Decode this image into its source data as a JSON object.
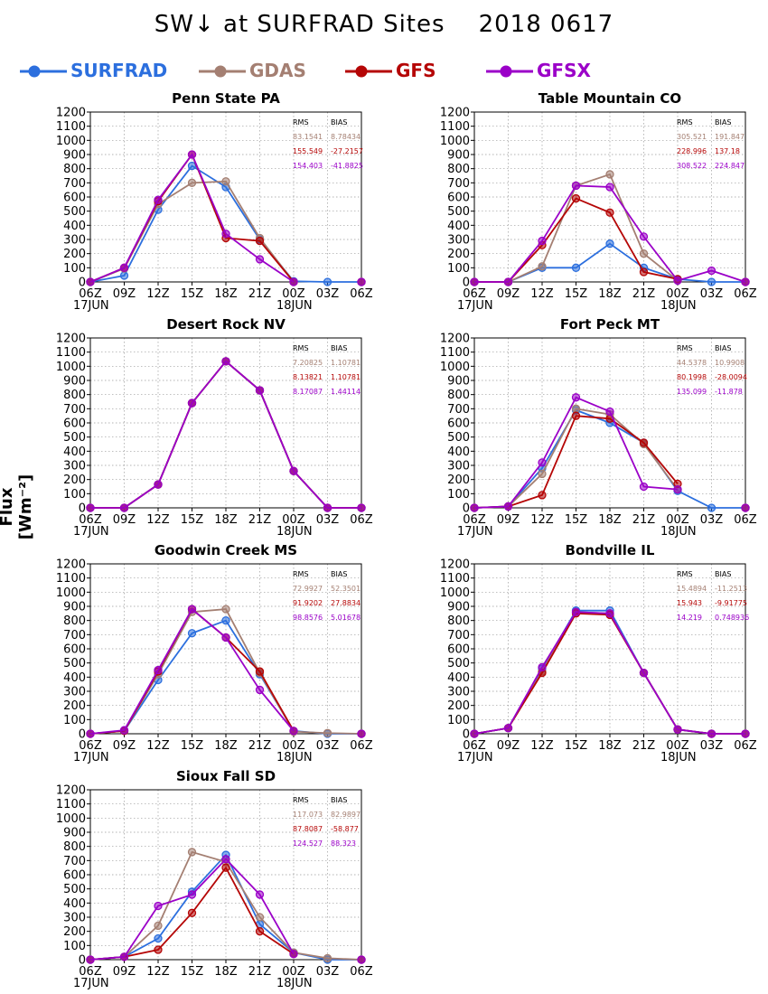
{
  "title": "SW↓ at SURFRAD Sites    2018 0617",
  "ylabel": "Flux [Wm⁻²]",
  "colors": {
    "SURFRAD": "#2c6fde",
    "GDAS": "#a47f72",
    "GFS": "#b50606",
    "GFSX": "#9b00c8"
  },
  "legend": [
    {
      "name": "SURFRAD",
      "color": "#2c6fde"
    },
    {
      "name": "GDAS",
      "color": "#a47f72"
    },
    {
      "name": "GFS",
      "color": "#b50606"
    },
    {
      "name": "GFSX",
      "color": "#9b00c8"
    }
  ],
  "stat_headers": {
    "rms": "RMS",
    "bias": "BIAS"
  },
  "chart_data": [
    {
      "type": "line",
      "title": "Penn State PA",
      "x": [
        "06Z",
        "09Z",
        "12Z",
        "15Z",
        "18Z",
        "21Z",
        "00Z",
        "03Z",
        "06Z"
      ],
      "date_labels": [
        "17JUN",
        "18JUN"
      ],
      "ylim": [
        0,
        1200
      ],
      "yticks": [
        0,
        100,
        200,
        300,
        400,
        500,
        600,
        700,
        800,
        900,
        1000,
        1100,
        1200
      ],
      "grid": true,
      "series": [
        {
          "name": "SURFRAD",
          "values": [
            0,
            45,
            510,
            820,
            670,
            300,
            5,
            0,
            0
          ]
        },
        {
          "name": "GDAS",
          "values": [
            0,
            95,
            550,
            700,
            710,
            310,
            0,
            null,
            0
          ]
        },
        {
          "name": "GFS",
          "values": [
            0,
            100,
            570,
            900,
            310,
            290,
            0,
            null,
            0
          ]
        },
        {
          "name": "GFSX",
          "values": [
            0,
            100,
            580,
            900,
            340,
            160,
            0,
            null,
            0
          ]
        }
      ],
      "stats": [
        {
          "model": "GDAS",
          "rms": "83.1541",
          "bias": "8.78434"
        },
        {
          "model": "GFS",
          "rms": "155.549",
          "bias": "-27.2157"
        },
        {
          "model": "GFSX",
          "rms": "154.403",
          "bias": "-41.8825"
        }
      ]
    },
    {
      "type": "line",
      "title": "Table Mountain CO",
      "x": [
        "06Z",
        "09Z",
        "12Z",
        "15Z",
        "18Z",
        "21Z",
        "00Z",
        "03Z",
        "06Z"
      ],
      "date_labels": [
        "17JUN",
        "18JUN"
      ],
      "ylim": [
        0,
        1200
      ],
      "yticks": [
        0,
        100,
        200,
        300,
        400,
        500,
        600,
        700,
        800,
        900,
        1000,
        1100,
        1200
      ],
      "grid": true,
      "series": [
        {
          "name": "SURFRAD",
          "values": [
            0,
            0,
            100,
            100,
            270,
            100,
            20,
            0,
            0
          ]
        },
        {
          "name": "GDAS",
          "values": [
            0,
            0,
            110,
            680,
            760,
            200,
            10,
            null,
            0
          ]
        },
        {
          "name": "GFS",
          "values": [
            0,
            0,
            260,
            590,
            490,
            70,
            20,
            null,
            0
          ]
        },
        {
          "name": "GFSX",
          "values": [
            0,
            0,
            290,
            680,
            670,
            320,
            10,
            80,
            0
          ]
        }
      ],
      "stats": [
        {
          "model": "GDAS",
          "rms": "305.521",
          "bias": "191.847"
        },
        {
          "model": "GFS",
          "rms": "228.996",
          "bias": "137.18"
        },
        {
          "model": "GFSX",
          "rms": "308.522",
          "bias": "224.847"
        }
      ]
    },
    {
      "type": "line",
      "title": "Desert Rock NV",
      "x": [
        "06Z",
        "09Z",
        "12Z",
        "15Z",
        "18Z",
        "21Z",
        "00Z",
        "03Z",
        "06Z"
      ],
      "date_labels": [
        "17JUN",
        "18JUN"
      ],
      "ylim": [
        0,
        1200
      ],
      "yticks": [
        0,
        100,
        200,
        300,
        400,
        500,
        600,
        700,
        800,
        900,
        1000,
        1100,
        1200
      ],
      "grid": true,
      "series": [
        {
          "name": "SURFRAD",
          "values": [
            0,
            0,
            165,
            740,
            1035,
            830,
            260,
            0,
            0
          ]
        },
        {
          "name": "GDAS",
          "values": [
            0,
            0,
            165,
            740,
            1035,
            830,
            260,
            0,
            0
          ]
        },
        {
          "name": "GFS",
          "values": [
            0,
            0,
            165,
            740,
            1035,
            830,
            260,
            0,
            0
          ]
        },
        {
          "name": "GFSX",
          "values": [
            0,
            0,
            165,
            740,
            1035,
            830,
            260,
            0,
            0
          ]
        }
      ],
      "stats": [
        {
          "model": "GDAS",
          "rms": "7.20825",
          "bias": "1.10781"
        },
        {
          "model": "GFS",
          "rms": "8.13821",
          "bias": "1.10781"
        },
        {
          "model": "GFSX",
          "rms": "8.17087",
          "bias": "1.44114"
        }
      ]
    },
    {
      "type": "line",
      "title": "Fort Peck MT",
      "x": [
        "06Z",
        "09Z",
        "12Z",
        "15Z",
        "18Z",
        "21Z",
        "00Z",
        "03Z",
        "06Z"
      ],
      "date_labels": [
        "17JUN",
        "18JUN"
      ],
      "ylim": [
        0,
        1200
      ],
      "yticks": [
        0,
        100,
        200,
        300,
        400,
        500,
        600,
        700,
        800,
        900,
        1000,
        1100,
        1200
      ],
      "grid": true,
      "series": [
        {
          "name": "SURFRAD",
          "values": [
            0,
            10,
            280,
            690,
            600,
            460,
            120,
            0,
            0
          ]
        },
        {
          "name": "GDAS",
          "values": [
            0,
            10,
            240,
            700,
            660,
            450,
            130,
            null,
            0
          ]
        },
        {
          "name": "GFS",
          "values": [
            0,
            10,
            90,
            650,
            630,
            460,
            170,
            null,
            0
          ]
        },
        {
          "name": "GFSX",
          "values": [
            0,
            10,
            320,
            780,
            680,
            150,
            130,
            null,
            0
          ]
        }
      ],
      "stats": [
        {
          "model": "GDAS",
          "rms": "44.5378",
          "bias": "10.9908"
        },
        {
          "model": "GFS",
          "rms": "80.1998",
          "bias": "-28.0094"
        },
        {
          "model": "GFSX",
          "rms": "135.099",
          "bias": "-11.878"
        }
      ]
    },
    {
      "type": "line",
      "title": "Goodwin Creek MS",
      "x": [
        "06Z",
        "09Z",
        "12Z",
        "15Z",
        "18Z",
        "21Z",
        "00Z",
        "03Z",
        "06Z"
      ],
      "date_labels": [
        "17JUN",
        "18JUN"
      ],
      "ylim": [
        0,
        1200
      ],
      "yticks": [
        0,
        100,
        200,
        300,
        400,
        500,
        600,
        700,
        800,
        900,
        1000,
        1100,
        1200
      ],
      "grid": true,
      "series": [
        {
          "name": "SURFRAD",
          "values": [
            0,
            20,
            380,
            710,
            800,
            420,
            20,
            0,
            0
          ]
        },
        {
          "name": "GDAS",
          "values": [
            0,
            20,
            420,
            860,
            880,
            430,
            15,
            5,
            0
          ]
        },
        {
          "name": "GFS",
          "values": [
            0,
            20,
            440,
            880,
            680,
            440,
            20,
            null,
            0
          ]
        },
        {
          "name": "GFSX",
          "values": [
            0,
            25,
            450,
            880,
            680,
            310,
            20,
            null,
            0
          ]
        }
      ],
      "stats": [
        {
          "model": "GDAS",
          "rms": "72.9927",
          "bias": "52.3501"
        },
        {
          "model": "GFS",
          "rms": "91.9202",
          "bias": "27.8834"
        },
        {
          "model": "GFSX",
          "rms": "98.8576",
          "bias": "5.01678"
        }
      ]
    },
    {
      "type": "line",
      "title": "Bondville IL",
      "x": [
        "06Z",
        "09Z",
        "12Z",
        "15Z",
        "18Z",
        "21Z",
        "00Z",
        "03Z",
        "06Z"
      ],
      "date_labels": [
        "17JUN",
        "18JUN"
      ],
      "ylim": [
        0,
        1200
      ],
      "yticks": [
        0,
        100,
        200,
        300,
        400,
        500,
        600,
        700,
        800,
        900,
        1000,
        1100,
        1200
      ],
      "grid": true,
      "series": [
        {
          "name": "SURFRAD",
          "values": [
            0,
            40,
            460,
            870,
            870,
            430,
            30,
            0,
            0
          ]
        },
        {
          "name": "GDAS",
          "values": [
            0,
            40,
            440,
            860,
            850,
            430,
            30,
            0,
            0
          ]
        },
        {
          "name": "GFS",
          "values": [
            0,
            40,
            430,
            850,
            840,
            430,
            30,
            0,
            0
          ]
        },
        {
          "name": "GFSX",
          "values": [
            0,
            40,
            470,
            860,
            850,
            430,
            30,
            0,
            0
          ]
        }
      ],
      "stats": [
        {
          "model": "GDAS",
          "rms": "15.4894",
          "bias": "-11.2513"
        },
        {
          "model": "GFS",
          "rms": "15.943",
          "bias": "-9.91775"
        },
        {
          "model": "GFSX",
          "rms": "14.219",
          "bias": "0.748936"
        }
      ]
    },
    {
      "type": "line",
      "title": "Sioux Fall SD",
      "x": [
        "06Z",
        "09Z",
        "12Z",
        "15Z",
        "18Z",
        "21Z",
        "00Z",
        "03Z",
        "06Z"
      ],
      "date_labels": [
        "17JUN",
        "18JUN"
      ],
      "ylim": [
        0,
        1200
      ],
      "yticks": [
        0,
        100,
        200,
        300,
        400,
        500,
        600,
        700,
        800,
        900,
        1000,
        1100,
        1200
      ],
      "grid": true,
      "series": [
        {
          "name": "SURFRAD",
          "values": [
            0,
            20,
            150,
            480,
            740,
            250,
            50,
            0,
            0
          ]
        },
        {
          "name": "GDAS",
          "values": [
            0,
            20,
            240,
            760,
            690,
            300,
            50,
            10,
            0
          ]
        },
        {
          "name": "GFS",
          "values": [
            0,
            20,
            70,
            330,
            650,
            200,
            40,
            null,
            0
          ]
        },
        {
          "name": "GFSX",
          "values": [
            0,
            20,
            380,
            460,
            710,
            460,
            40,
            null,
            0
          ]
        }
      ],
      "stats": [
        {
          "model": "GDAS",
          "rms": "117.073",
          "bias": "82.9897"
        },
        {
          "model": "GFS",
          "rms": "87.8087",
          "bias": "-58.877"
        },
        {
          "model": "GFSX",
          "rms": "124.527",
          "bias": "88.323"
        }
      ]
    }
  ]
}
